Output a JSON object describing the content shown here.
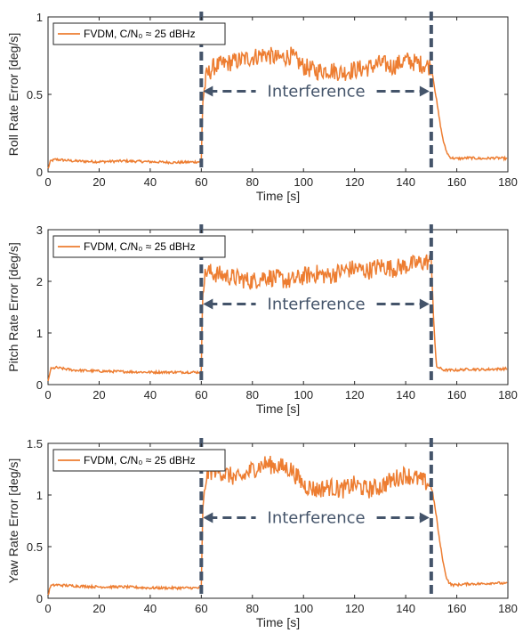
{
  "chart_data": [
    {
      "type": "line",
      "xlabel": "Time [s]",
      "ylabel": "Roll Rate Error [deg/s]",
      "xlim": [
        0,
        180
      ],
      "ylim": [
        0,
        1
      ],
      "xticks": [
        "0",
        "20",
        "40",
        "60",
        "80",
        "100",
        "120",
        "140",
        "160",
        "180"
      ],
      "yticks": [
        "0",
        "0.5",
        "1"
      ],
      "grid": false,
      "legend": {
        "position": "top-left",
        "entries": [
          "FVDM, C/N₀ ≈ 25 dBHz"
        ]
      },
      "series": [
        {
          "name": "FVDM, C/N₀ ≈ 25 dBHz",
          "color": "#ed7d31",
          "x": [
            0,
            1,
            3,
            10,
            20,
            30,
            40,
            50,
            60,
            60.5,
            62,
            65,
            70,
            75,
            80,
            85,
            90,
            95,
            100,
            105,
            110,
            115,
            120,
            125,
            130,
            135,
            140,
            145,
            150,
            151,
            152,
            153,
            154,
            155,
            156,
            157,
            158,
            160,
            165,
            170,
            175,
            180
          ],
          "y": [
            0.02,
            0.07,
            0.08,
            0.07,
            0.065,
            0.07,
            0.065,
            0.06,
            0.065,
            0.45,
            0.62,
            0.68,
            0.7,
            0.72,
            0.74,
            0.76,
            0.73,
            0.75,
            0.68,
            0.65,
            0.66,
            0.64,
            0.66,
            0.67,
            0.7,
            0.68,
            0.72,
            0.7,
            0.68,
            0.58,
            0.47,
            0.36,
            0.26,
            0.18,
            0.13,
            0.1,
            0.09,
            0.085,
            0.09,
            0.085,
            0.09,
            0.085
          ]
        }
      ],
      "annotation": {
        "text": "Interference",
        "x_start": 60,
        "x_end": 150
      }
    },
    {
      "type": "line",
      "xlabel": "Time [s]",
      "ylabel": "Pitch Rate Error [deg/s]",
      "xlim": [
        0,
        180
      ],
      "ylim": [
        0,
        3
      ],
      "xticks": [
        "0",
        "20",
        "40",
        "60",
        "80",
        "100",
        "120",
        "140",
        "160",
        "180"
      ],
      "yticks": [
        "0",
        "1",
        "2",
        "3"
      ],
      "grid": false,
      "legend": {
        "position": "top-left",
        "entries": [
          "FVDM, C/N₀ ≈ 25 dBHz"
        ]
      },
      "series": [
        {
          "name": "FVDM, C/N₀ ≈ 25 dBHz",
          "color": "#ed7d31",
          "x": [
            0,
            1,
            3,
            10,
            20,
            30,
            40,
            50,
            60,
            60.5,
            62,
            65,
            70,
            75,
            80,
            85,
            90,
            95,
            100,
            105,
            110,
            115,
            120,
            125,
            130,
            135,
            140,
            145,
            150,
            151,
            152,
            155,
            160,
            165,
            170,
            175,
            180
          ],
          "y": [
            0.05,
            0.3,
            0.33,
            0.28,
            0.26,
            0.25,
            0.24,
            0.24,
            0.24,
            1.9,
            2.2,
            2.15,
            2.1,
            2.05,
            2.0,
            2.1,
            2.05,
            2.0,
            2.1,
            2.15,
            2.1,
            2.2,
            2.25,
            2.2,
            2.3,
            2.25,
            2.3,
            2.35,
            2.4,
            1.2,
            0.35,
            0.28,
            0.28,
            0.3,
            0.29,
            0.3,
            0.31
          ]
        }
      ],
      "annotation": {
        "text": "Interference",
        "x_start": 60,
        "x_end": 150
      }
    },
    {
      "type": "line",
      "xlabel": "Time [s]",
      "ylabel": "Yaw Rate Error [deg/s]",
      "xlim": [
        0,
        180
      ],
      "ylim": [
        0,
        1.5
      ],
      "xticks": [
        "0",
        "20",
        "40",
        "60",
        "80",
        "100",
        "120",
        "140",
        "160",
        "180"
      ],
      "yticks": [
        "0",
        "0.5",
        "1",
        "1.5"
      ],
      "grid": false,
      "legend": {
        "position": "top-left",
        "entries": [
          "FVDM, C/N₀ ≈ 25 dBHz"
        ]
      },
      "series": [
        {
          "name": "FVDM, C/N₀ ≈ 25 dBHz",
          "color": "#ed7d31",
          "x": [
            0,
            1,
            3,
            10,
            20,
            30,
            40,
            50,
            60,
            60.5,
            62,
            65,
            70,
            75,
            80,
            85,
            90,
            95,
            100,
            105,
            110,
            115,
            120,
            125,
            130,
            135,
            140,
            145,
            150,
            151,
            152,
            153,
            154,
            155,
            156,
            157,
            158,
            160,
            165,
            170,
            175,
            180
          ],
          "y": [
            0.03,
            0.12,
            0.13,
            0.12,
            0.11,
            0.11,
            0.1,
            0.1,
            0.1,
            0.8,
            1.2,
            1.25,
            1.2,
            1.15,
            1.25,
            1.3,
            1.28,
            1.25,
            1.1,
            1.05,
            1.08,
            1.05,
            1.1,
            1.05,
            1.08,
            1.15,
            1.2,
            1.15,
            1.1,
            0.95,
            0.8,
            0.6,
            0.45,
            0.3,
            0.2,
            0.15,
            0.13,
            0.13,
            0.14,
            0.14,
            0.15,
            0.14
          ]
        }
      ],
      "annotation": {
        "text": "Interference",
        "x_start": 60,
        "x_end": 150
      }
    }
  ]
}
